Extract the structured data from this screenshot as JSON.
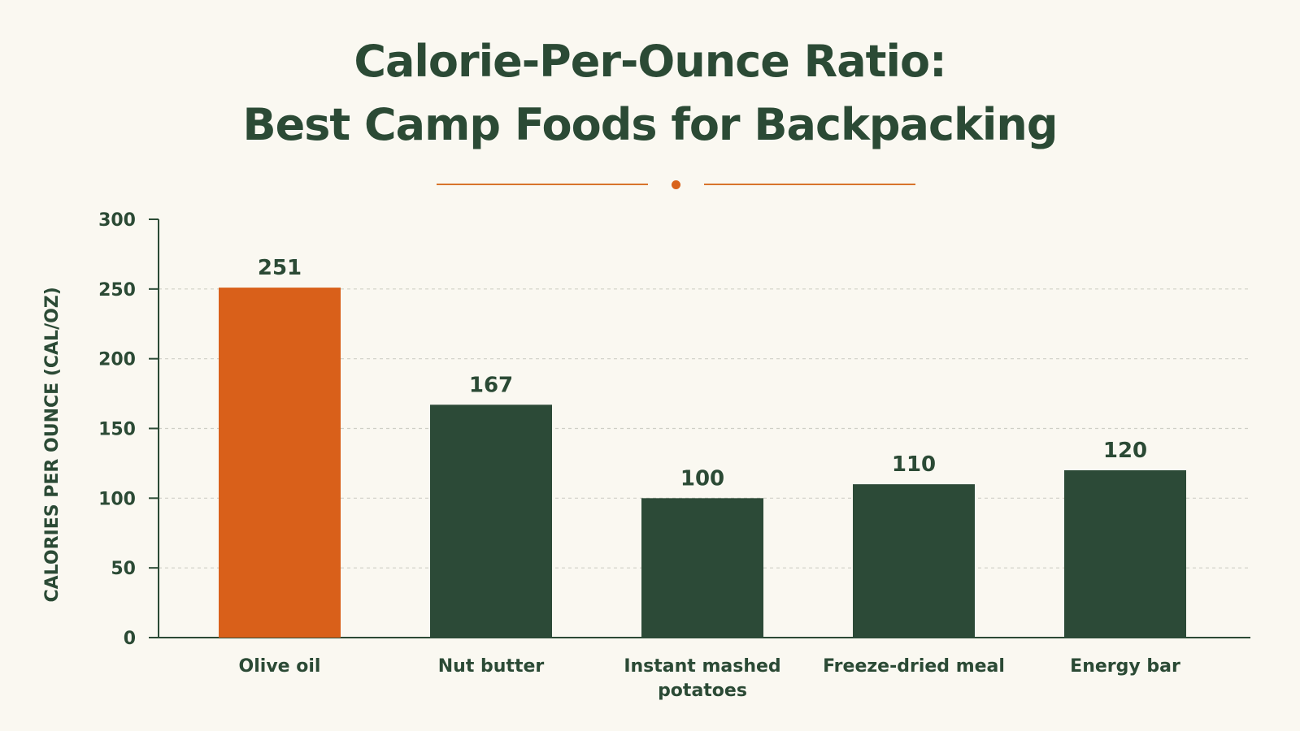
{
  "chart_data": {
    "type": "bar",
    "title_line1": "Calorie-Per-Ounce Ratio:",
    "title_line2": "Best Camp Foods for Backpacking",
    "xlabel": "",
    "ylabel": "CALORIES PER OUNCE (CAL/OZ)",
    "ylim": [
      0,
      300
    ],
    "yticks": [
      0,
      50,
      100,
      150,
      200,
      250,
      300
    ],
    "grid": true,
    "categories": [
      "Olive oil",
      "Nut butter",
      "Instant mashed potatoes",
      "Freeze-dried meal",
      "Energy bar"
    ],
    "category_lines": [
      [
        "Olive oil"
      ],
      [
        "Nut butter"
      ],
      [
        "Instant mashed",
        "potatoes"
      ],
      [
        "Freeze-dried meal"
      ],
      [
        "Energy bar"
      ]
    ],
    "values": [
      251,
      167,
      100,
      110,
      120
    ],
    "bar_colors": [
      "#d9601a",
      "#2c4a37",
      "#2c4a37",
      "#2c4a37",
      "#2c4a37"
    ]
  },
  "colors": {
    "background": "#faf8f1",
    "text": "#2b4a35",
    "accent": "#d8621a",
    "bar": "#2c4a37",
    "grid": "#cfcfc6"
  }
}
